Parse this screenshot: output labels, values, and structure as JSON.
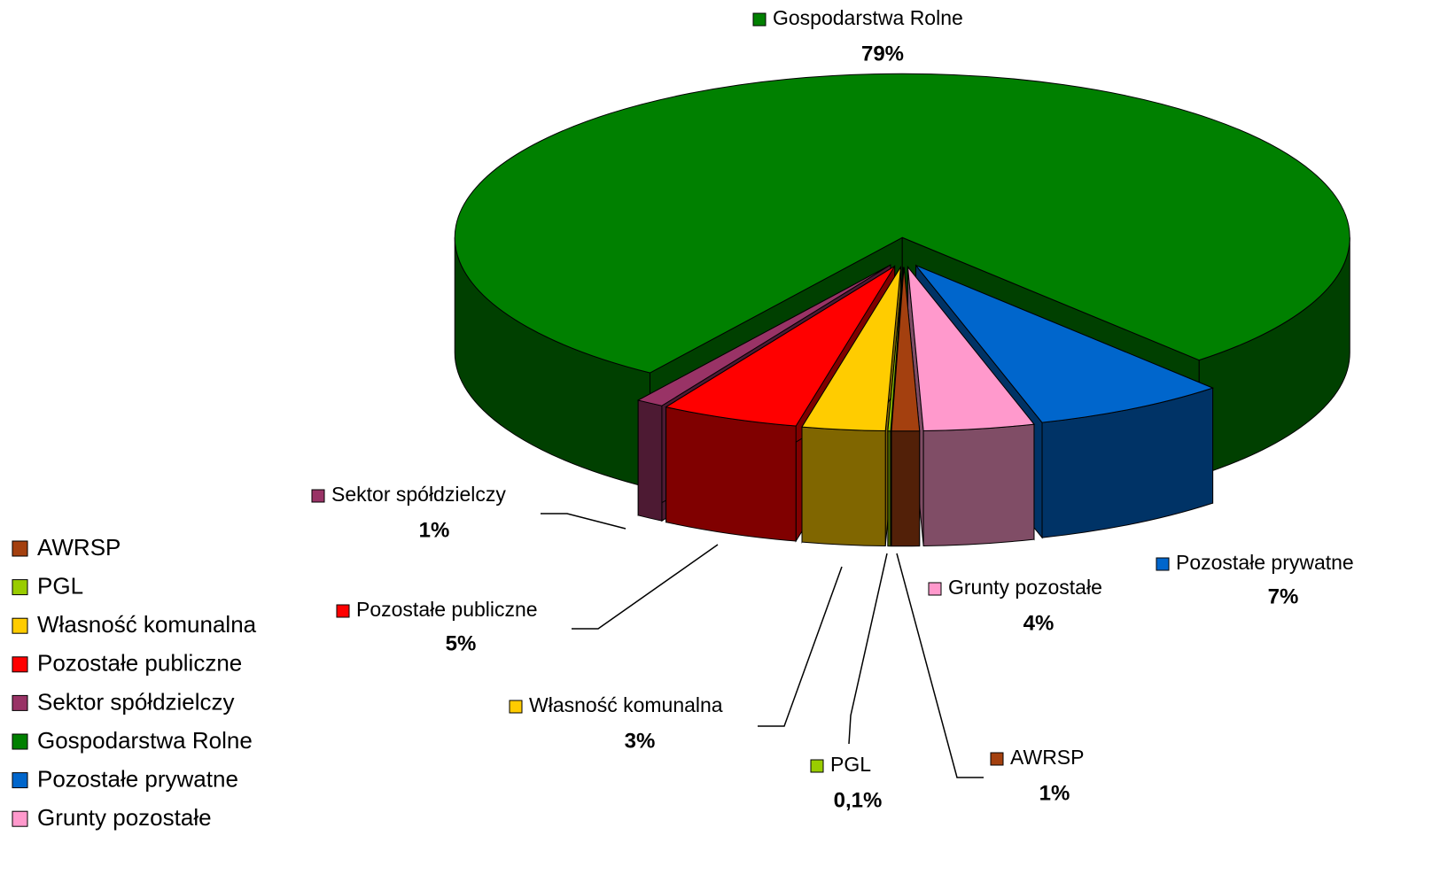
{
  "chart_data": {
    "type": "pie",
    "categories": [
      "AWRSP",
      "PGL",
      "Własność komunalna",
      "Pozostałe publiczne",
      "Sektor spółdzielczy",
      "Gospodarstwa Rolne",
      "Pozostałe prywatne",
      "Grunty pozostałe"
    ],
    "values": [
      1,
      0.1,
      3,
      5,
      1,
      79,
      7,
      4
    ],
    "value_labels": [
      "1%",
      "0,1%",
      "3%",
      "5%",
      "1%",
      "79%",
      "7%",
      "4%"
    ],
    "colors": [
      "#a4400f",
      "#99cc00",
      "#ffcc00",
      "#ff0000",
      "#993366",
      "#008000",
      "#0066cc",
      "#ff99cc"
    ],
    "legend": "left"
  }
}
